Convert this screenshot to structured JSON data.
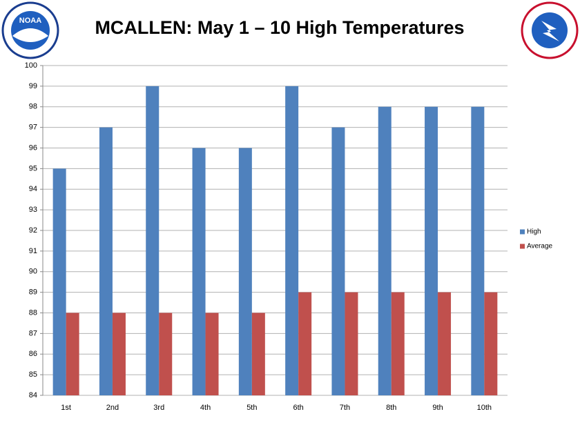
{
  "logo_left": "NOAA",
  "chart_data": {
    "type": "bar",
    "title": "MCALLEN:  May 1 – 10 High  Temperatures",
    "categories": [
      "1st",
      "2nd",
      "3rd",
      "4th",
      "5th",
      "6th",
      "7th",
      "8th",
      "9th",
      "10th"
    ],
    "series": [
      {
        "name": "High",
        "color": "#4f81bd",
        "values": [
          95,
          97,
          99,
          96,
          96,
          99,
          97,
          98,
          98,
          98
        ]
      },
      {
        "name": "Average",
        "color": "#c0504d",
        "values": [
          88,
          88,
          88,
          88,
          88,
          89,
          89,
          89,
          89,
          89
        ]
      }
    ],
    "ylim": [
      84,
      100
    ],
    "yticks": [
      84,
      85,
      86,
      87,
      88,
      89,
      90,
      91,
      92,
      93,
      94,
      95,
      96,
      97,
      98,
      99,
      100
    ],
    "grid": true,
    "legend": "right"
  }
}
